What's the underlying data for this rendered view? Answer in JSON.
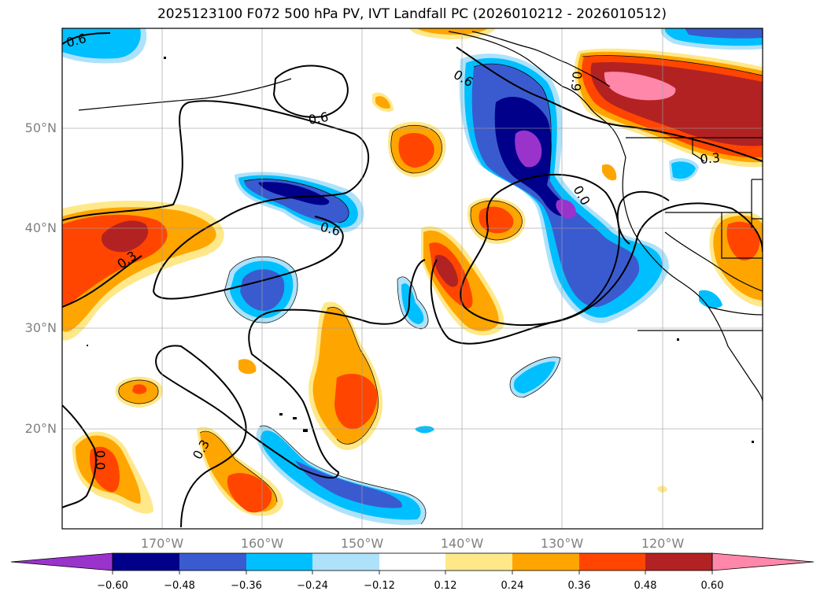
{
  "title": "2025123100 F072 500 hPa PV, IVT Landfall PC (2026010212 - 2026010512)",
  "map": {
    "lon_range": [
      -180,
      -110
    ],
    "lat_range": [
      10,
      60
    ],
    "lat_ticks": [
      {
        "value": 20,
        "label": "20°N"
      },
      {
        "value": 30,
        "label": "30°N"
      },
      {
        "value": 40,
        "label": "40°N"
      },
      {
        "value": 50,
        "label": "50°N"
      }
    ],
    "lon_ticks": [
      {
        "value": -170,
        "label": "170°W"
      },
      {
        "value": -160,
        "label": "160°W"
      },
      {
        "value": -150,
        "label": "150°W"
      },
      {
        "value": -140,
        "label": "140°W"
      },
      {
        "value": -130,
        "label": "130°W"
      },
      {
        "value": -120,
        "label": "120°W"
      }
    ],
    "contour_labels": [
      "0.6",
      "0.6",
      "0.6",
      "0.6",
      "0.3",
      "0.3",
      "0.3",
      "0.0",
      "0.0",
      "0.9"
    ]
  },
  "colorbar": {
    "colors": [
      "#9a33cc",
      "#00008b",
      "#3a5bcf",
      "#00bfff",
      "#aee2fa",
      "#ffffff",
      "#ffe88a",
      "#ffa500",
      "#ff4500",
      "#b22222",
      "#ff88aa"
    ],
    "tick_labels": [
      "−0.60",
      "−0.48",
      "−0.36",
      "−0.24",
      "−0.12",
      "0.12",
      "0.24",
      "0.36",
      "0.48",
      "0.60"
    ]
  },
  "chart_data": {
    "type": "map",
    "title": "2025123100 F072 500 hPa PV, IVT Landfall PC (2026010212 - 2026010512)",
    "levels": [
      -0.6,
      -0.48,
      -0.36,
      -0.24,
      -0.12,
      0.12,
      0.24,
      0.36,
      0.48,
      0.6
    ],
    "field_centers": [
      {
        "lon": -170,
        "lat": 39,
        "value": 0.5
      },
      {
        "lon": -158,
        "lat": 43,
        "value": -0.5
      },
      {
        "lon": -159,
        "lat": 35,
        "value": -0.4
      },
      {
        "lon": -150,
        "lat": 22,
        "value": 0.4
      },
      {
        "lon": -141,
        "lat": 35,
        "value": 0.5
      },
      {
        "lon": -135,
        "lat": 40,
        "value": 0.45
      },
      {
        "lon": -133,
        "lat": 49,
        "value": -0.65
      },
      {
        "lon": -127,
        "lat": 38,
        "value": -0.45
      },
      {
        "lon": -120,
        "lat": 55,
        "value": 0.65
      },
      {
        "lon": -113,
        "lat": 37,
        "value": 0.4
      },
      {
        "lon": -176,
        "lat": 16,
        "value": 0.4
      },
      {
        "lon": -160,
        "lat": 14,
        "value": 0.4
      },
      {
        "lon": -145,
        "lat": 14,
        "value": -0.35
      }
    ]
  }
}
